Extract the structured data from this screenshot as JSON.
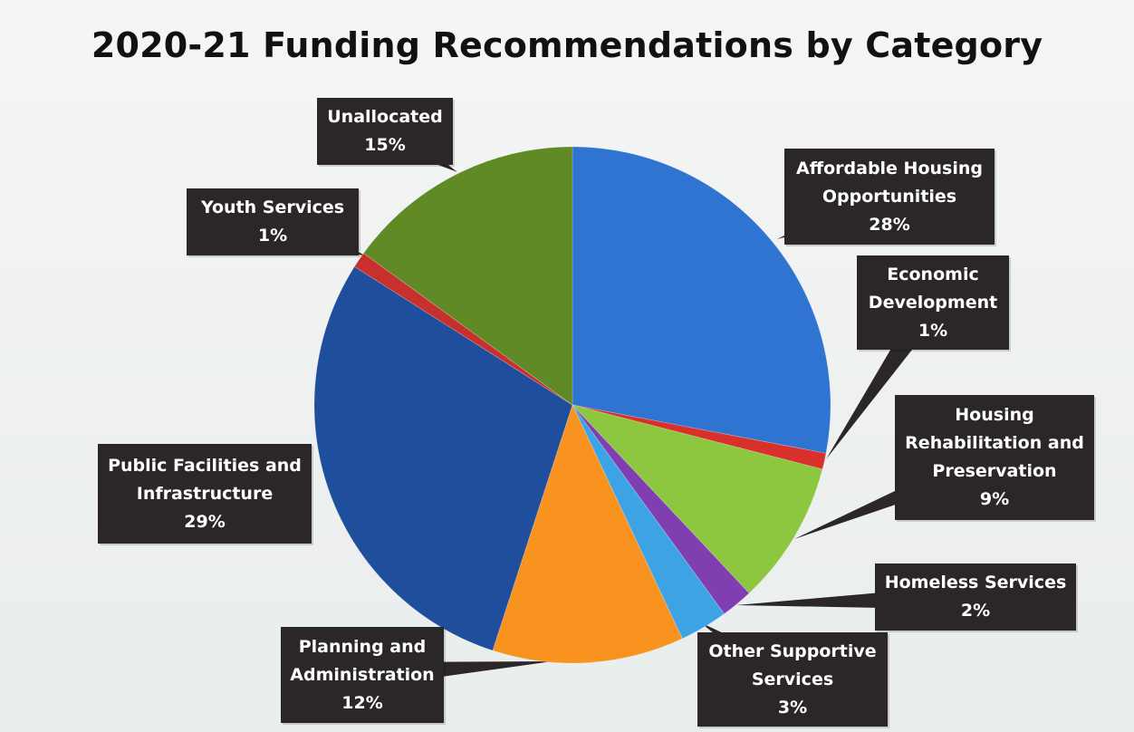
{
  "chart_data": {
    "type": "pie",
    "title": "2020-21 Funding Recommendations by Category",
    "slices": [
      {
        "name": "Affordable Housing Opportunities",
        "label_lines": [
          "Affordable Housing",
          "Opportunities"
        ],
        "percent_label": "28%",
        "value": 28,
        "color": "#2f74d0"
      },
      {
        "name": "Economic Development",
        "label_lines": [
          "Economic",
          "Development"
        ],
        "percent_label": "1%",
        "value": 1,
        "color": "#d8302b"
      },
      {
        "name": "Housing Rehabilitation and Preservation",
        "label_lines": [
          "Housing",
          "Rehabilitation and",
          "Preservation"
        ],
        "percent_label": "9%",
        "value": 9,
        "color": "#8dc63f"
      },
      {
        "name": "Homeless Services",
        "label_lines": [
          "Homeless Services"
        ],
        "percent_label": "2%",
        "value": 2,
        "color": "#7f3fb0"
      },
      {
        "name": "Other Supportive Services",
        "label_lines": [
          "Other Supportive",
          "Services"
        ],
        "percent_label": "3%",
        "value": 3,
        "color": "#3ea3e5"
      },
      {
        "name": "Planning and Administration",
        "label_lines": [
          "Planning and",
          "Administration"
        ],
        "percent_label": "12%",
        "value": 12,
        "color": "#f7931e"
      },
      {
        "name": "Public Facilities and Infrastructure",
        "label_lines": [
          "Public Facilities and",
          "Infrastructure"
        ],
        "percent_label": "29%",
        "value": 29,
        "color": "#1f4e9c"
      },
      {
        "name": "Youth Services",
        "label_lines": [
          "Youth Services"
        ],
        "percent_label": "1%",
        "value": 1,
        "color": "#c8302d"
      },
      {
        "name": "Unallocated",
        "label_lines": [
          "Unallocated"
        ],
        "percent_label": "15%",
        "value": 15,
        "color": "#5f8a25"
      }
    ],
    "legend": "callout-labels"
  }
}
